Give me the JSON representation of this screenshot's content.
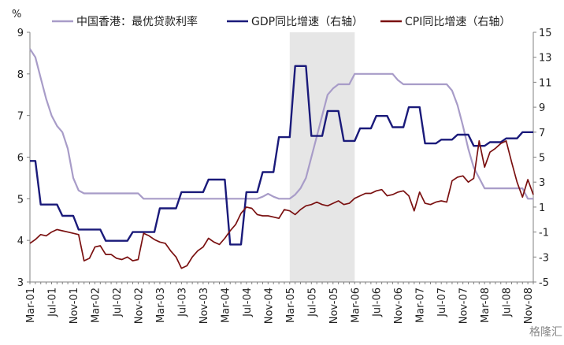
{
  "chart_data": {
    "type": "line",
    "left_axis_unit": "%",
    "y_left_lim": [
      3,
      9
    ],
    "y_right_lim": [
      -5,
      15
    ],
    "left_ticks": [
      3,
      4,
      5,
      6,
      7,
      8,
      9
    ],
    "right_ticks": [
      -5,
      -3,
      -1,
      1,
      3,
      5,
      7,
      9,
      11,
      13,
      15
    ],
    "x_range": [
      "2001-03",
      "2008-12"
    ],
    "x_tick_labels": [
      "Mar-01",
      "Jul-01",
      "Nov-01",
      "Mar-02",
      "Jul-02",
      "Nov-02",
      "Mar-03",
      "Jul-03",
      "Nov-03",
      "Mar-04",
      "Jul-04",
      "Nov-04",
      "Mar-05",
      "Jul-05",
      "Nov-05",
      "Mar-06",
      "Jul-06",
      "Nov-06",
      "Mar-07",
      "Jul-07",
      "Nov-07",
      "Mar-08",
      "Jul-08",
      "Nov-08"
    ],
    "shaded_period": [
      "2005-03",
      "2006-03"
    ],
    "grid": false,
    "legend_position": "top",
    "series": [
      {
        "name": "中国香港：最优贷款利率",
        "axis": "left",
        "color": "#a89cc8",
        "points": [
          [
            "2001-03",
            8.6
          ],
          [
            "2001-04",
            8.4
          ],
          [
            "2001-05",
            7.9
          ],
          [
            "2001-06",
            7.4
          ],
          [
            "2001-07",
            7.0
          ],
          [
            "2001-08",
            6.75
          ],
          [
            "2001-09",
            6.6
          ],
          [
            "2001-10",
            6.2
          ],
          [
            "2001-11",
            5.5
          ],
          [
            "2001-12",
            5.2
          ],
          [
            "2002-01",
            5.13
          ],
          [
            "2002-02",
            5.13
          ],
          [
            "2002-03",
            5.13
          ],
          [
            "2002-04",
            5.13
          ],
          [
            "2002-05",
            5.13
          ],
          [
            "2002-06",
            5.13
          ],
          [
            "2002-07",
            5.13
          ],
          [
            "2002-08",
            5.13
          ],
          [
            "2002-09",
            5.13
          ],
          [
            "2002-10",
            5.13
          ],
          [
            "2002-11",
            5.13
          ],
          [
            "2002-12",
            5.0
          ],
          [
            "2003-01",
            5.0
          ],
          [
            "2003-02",
            5.0
          ],
          [
            "2003-03",
            5.0
          ],
          [
            "2003-04",
            5.0
          ],
          [
            "2003-05",
            5.0
          ],
          [
            "2003-06",
            5.0
          ],
          [
            "2003-07",
            5.0
          ],
          [
            "2003-08",
            5.0
          ],
          [
            "2003-09",
            5.0
          ],
          [
            "2003-10",
            5.0
          ],
          [
            "2003-11",
            5.0
          ],
          [
            "2003-12",
            5.0
          ],
          [
            "2004-01",
            5.0
          ],
          [
            "2004-02",
            5.0
          ],
          [
            "2004-03",
            5.0
          ],
          [
            "2004-04",
            5.0
          ],
          [
            "2004-05",
            5.0
          ],
          [
            "2004-06",
            5.0
          ],
          [
            "2004-07",
            5.0
          ],
          [
            "2004-08",
            5.0
          ],
          [
            "2004-09",
            5.0
          ],
          [
            "2004-10",
            5.05
          ],
          [
            "2004-11",
            5.12
          ],
          [
            "2004-12",
            5.05
          ],
          [
            "2005-01",
            5.0
          ],
          [
            "2005-02",
            5.0
          ],
          [
            "2005-03",
            5.0
          ],
          [
            "2005-04",
            5.1
          ],
          [
            "2005-05",
            5.25
          ],
          [
            "2005-06",
            5.5
          ],
          [
            "2005-07",
            6.0
          ],
          [
            "2005-08",
            6.5
          ],
          [
            "2005-09",
            7.0
          ],
          [
            "2005-10",
            7.5
          ],
          [
            "2005-11",
            7.65
          ],
          [
            "2005-12",
            7.75
          ],
          [
            "2006-01",
            7.75
          ],
          [
            "2006-02",
            7.75
          ],
          [
            "2006-03",
            8.0
          ],
          [
            "2006-04",
            8.0
          ],
          [
            "2006-05",
            8.0
          ],
          [
            "2006-06",
            8.0
          ],
          [
            "2006-07",
            8.0
          ],
          [
            "2006-08",
            8.0
          ],
          [
            "2006-09",
            8.0
          ],
          [
            "2006-10",
            8.0
          ],
          [
            "2006-11",
            7.85
          ],
          [
            "2006-12",
            7.75
          ],
          [
            "2007-01",
            7.75
          ],
          [
            "2007-02",
            7.75
          ],
          [
            "2007-03",
            7.75
          ],
          [
            "2007-04",
            7.75
          ],
          [
            "2007-05",
            7.75
          ],
          [
            "2007-06",
            7.75
          ],
          [
            "2007-07",
            7.75
          ],
          [
            "2007-08",
            7.75
          ],
          [
            "2007-09",
            7.6
          ],
          [
            "2007-10",
            7.25
          ],
          [
            "2007-11",
            6.75
          ],
          [
            "2007-12",
            6.2
          ],
          [
            "2008-01",
            5.75
          ],
          [
            "2008-02",
            5.5
          ],
          [
            "2008-03",
            5.25
          ],
          [
            "2008-04",
            5.25
          ],
          [
            "2008-05",
            5.25
          ],
          [
            "2008-06",
            5.25
          ],
          [
            "2008-07",
            5.25
          ],
          [
            "2008-08",
            5.25
          ],
          [
            "2008-09",
            5.25
          ],
          [
            "2008-10",
            5.25
          ],
          [
            "2008-11",
            5.0
          ],
          [
            "2008-12",
            5.0
          ]
        ]
      },
      {
        "name": "GDP同比增速（右轴）",
        "axis": "right",
        "color": "#1a1a7a",
        "points": [
          [
            "2001-03",
            4.7
          ],
          [
            "2001-04",
            4.7
          ],
          [
            "2001-05",
            1.2
          ],
          [
            "2001-06",
            1.2
          ],
          [
            "2001-07",
            1.2
          ],
          [
            "2001-08",
            1.2
          ],
          [
            "2001-09",
            0.3
          ],
          [
            "2001-10",
            0.3
          ],
          [
            "2001-11",
            0.3
          ],
          [
            "2001-12",
            -0.8
          ],
          [
            "2002-01",
            -0.8
          ],
          [
            "2002-02",
            -0.8
          ],
          [
            "2002-03",
            -0.8
          ],
          [
            "2002-04",
            -0.8
          ],
          [
            "2002-05",
            -1.7
          ],
          [
            "2002-06",
            -1.7
          ],
          [
            "2002-07",
            -1.7
          ],
          [
            "2002-08",
            -1.7
          ],
          [
            "2002-09",
            -1.7
          ],
          [
            "2002-10",
            -1.0
          ],
          [
            "2002-11",
            -1.0
          ],
          [
            "2002-12",
            -1.0
          ],
          [
            "2003-01",
            -1.0
          ],
          [
            "2003-02",
            -1.0
          ],
          [
            "2003-03",
            0.9
          ],
          [
            "2003-04",
            0.9
          ],
          [
            "2003-05",
            0.9
          ],
          [
            "2003-06",
            0.9
          ],
          [
            "2003-07",
            2.2
          ],
          [
            "2003-08",
            2.2
          ],
          [
            "2003-09",
            2.2
          ],
          [
            "2003-10",
            2.2
          ],
          [
            "2003-11",
            2.2
          ],
          [
            "2003-12",
            3.2
          ],
          [
            "2004-01",
            3.2
          ],
          [
            "2004-02",
            3.2
          ],
          [
            "2004-03",
            3.2
          ],
          [
            "2004-04",
            -2.0
          ],
          [
            "2004-05",
            -2.0
          ],
          [
            "2004-06",
            -2.0
          ],
          [
            "2004-07",
            2.2
          ],
          [
            "2004-08",
            2.2
          ],
          [
            "2004-09",
            2.2
          ],
          [
            "2004-10",
            3.8
          ],
          [
            "2004-11",
            3.8
          ],
          [
            "2004-12",
            3.8
          ],
          [
            "2005-01",
            6.6
          ],
          [
            "2005-02",
            6.6
          ],
          [
            "2005-03",
            6.6
          ],
          [
            "2005-04",
            12.3
          ],
          [
            "2005-05",
            12.3
          ],
          [
            "2005-06",
            12.3
          ],
          [
            "2005-07",
            6.7
          ],
          [
            "2005-08",
            6.7
          ],
          [
            "2005-09",
            6.7
          ],
          [
            "2005-10",
            8.7
          ],
          [
            "2005-11",
            8.7
          ],
          [
            "2005-12",
            8.7
          ],
          [
            "2006-01",
            6.3
          ],
          [
            "2006-02",
            6.3
          ],
          [
            "2006-03",
            6.3
          ],
          [
            "2006-04",
            7.3
          ],
          [
            "2006-05",
            7.3
          ],
          [
            "2006-06",
            7.3
          ],
          [
            "2006-07",
            8.3
          ],
          [
            "2006-08",
            8.3
          ],
          [
            "2006-09",
            8.3
          ],
          [
            "2006-10",
            7.4
          ],
          [
            "2006-11",
            7.4
          ],
          [
            "2006-12",
            7.4
          ],
          [
            "2007-01",
            9.0
          ],
          [
            "2007-02",
            9.0
          ],
          [
            "2007-03",
            9.0
          ],
          [
            "2007-04",
            6.1
          ],
          [
            "2007-05",
            6.1
          ],
          [
            "2007-06",
            6.1
          ],
          [
            "2007-07",
            6.4
          ],
          [
            "2007-08",
            6.4
          ],
          [
            "2007-09",
            6.4
          ],
          [
            "2007-10",
            6.8
          ],
          [
            "2007-11",
            6.8
          ],
          [
            "2007-12",
            6.8
          ],
          [
            "2008-01",
            5.9
          ],
          [
            "2008-02",
            5.9
          ],
          [
            "2008-03",
            5.9
          ],
          [
            "2008-04",
            6.2
          ],
          [
            "2008-05",
            6.2
          ],
          [
            "2008-06",
            6.2
          ],
          [
            "2008-07",
            6.5
          ],
          [
            "2008-08",
            6.5
          ],
          [
            "2008-09",
            6.5
          ],
          [
            "2008-10",
            7.0
          ],
          [
            "2008-11",
            7.0
          ],
          [
            "2008-12",
            7.0
          ]
        ]
      },
      {
        "name": "CPI同比增速（右轴）",
        "axis": "right",
        "color": "#7a1010",
        "points": [
          [
            "2001-03",
            -1.9
          ],
          [
            "2001-04",
            -1.6
          ],
          [
            "2001-05",
            -1.2
          ],
          [
            "2001-06",
            -1.3
          ],
          [
            "2001-07",
            -1.0
          ],
          [
            "2001-08",
            -0.8
          ],
          [
            "2001-09",
            -0.9
          ],
          [
            "2001-10",
            -1.0
          ],
          [
            "2001-11",
            -1.1
          ],
          [
            "2001-12",
            -1.2
          ],
          [
            "2002-01",
            -3.3
          ],
          [
            "2002-02",
            -3.1
          ],
          [
            "2002-03",
            -2.2
          ],
          [
            "2002-04",
            -2.1
          ],
          [
            "2002-05",
            -2.8
          ],
          [
            "2002-06",
            -2.8
          ],
          [
            "2002-07",
            -3.1
          ],
          [
            "2002-08",
            -3.2
          ],
          [
            "2002-09",
            -3.0
          ],
          [
            "2002-10",
            -3.3
          ],
          [
            "2002-11",
            -3.2
          ],
          [
            "2002-12",
            -1.1
          ],
          [
            "2003-01",
            -1.3
          ],
          [
            "2003-02",
            -1.6
          ],
          [
            "2003-03",
            -1.8
          ],
          [
            "2003-04",
            -1.9
          ],
          [
            "2003-05",
            -2.5
          ],
          [
            "2003-06",
            -3.0
          ],
          [
            "2003-07",
            -3.9
          ],
          [
            "2003-08",
            -3.7
          ],
          [
            "2003-09",
            -3.0
          ],
          [
            "2003-10",
            -2.5
          ],
          [
            "2003-11",
            -2.2
          ],
          [
            "2003-12",
            -1.5
          ],
          [
            "2004-01",
            -1.8
          ],
          [
            "2004-02",
            -2.0
          ],
          [
            "2004-03",
            -1.5
          ],
          [
            "2004-04",
            -0.9
          ],
          [
            "2004-05",
            -0.4
          ],
          [
            "2004-06",
            0.5
          ],
          [
            "2004-07",
            1.0
          ],
          [
            "2004-08",
            0.9
          ],
          [
            "2004-09",
            0.4
          ],
          [
            "2004-10",
            0.3
          ],
          [
            "2004-11",
            0.3
          ],
          [
            "2004-12",
            0.2
          ],
          [
            "2005-01",
            0.1
          ],
          [
            "2005-02",
            0.8
          ],
          [
            "2005-03",
            0.7
          ],
          [
            "2005-04",
            0.4
          ],
          [
            "2005-05",
            0.8
          ],
          [
            "2005-06",
            1.1
          ],
          [
            "2005-07",
            1.2
          ],
          [
            "2005-08",
            1.4
          ],
          [
            "2005-09",
            1.2
          ],
          [
            "2005-10",
            1.1
          ],
          [
            "2005-11",
            1.3
          ],
          [
            "2005-12",
            1.5
          ],
          [
            "2006-01",
            1.2
          ],
          [
            "2006-02",
            1.3
          ],
          [
            "2006-03",
            1.7
          ],
          [
            "2006-04",
            1.9
          ],
          [
            "2006-05",
            2.1
          ],
          [
            "2006-06",
            2.1
          ],
          [
            "2006-07",
            2.3
          ],
          [
            "2006-08",
            2.4
          ],
          [
            "2006-09",
            1.9
          ],
          [
            "2006-10",
            2.0
          ],
          [
            "2006-11",
            2.2
          ],
          [
            "2006-12",
            2.3
          ],
          [
            "2007-01",
            1.9
          ],
          [
            "2007-02",
            0.7
          ],
          [
            "2007-03",
            2.2
          ],
          [
            "2007-04",
            1.3
          ],
          [
            "2007-05",
            1.2
          ],
          [
            "2007-06",
            1.4
          ],
          [
            "2007-07",
            1.5
          ],
          [
            "2007-08",
            1.4
          ],
          [
            "2007-09",
            3.1
          ],
          [
            "2007-10",
            3.4
          ],
          [
            "2007-11",
            3.5
          ],
          [
            "2007-12",
            3.0
          ],
          [
            "2008-01",
            3.3
          ],
          [
            "2008-02",
            6.3
          ],
          [
            "2008-03",
            4.2
          ],
          [
            "2008-04",
            5.4
          ],
          [
            "2008-05",
            5.7
          ],
          [
            "2008-06",
            6.1
          ],
          [
            "2008-07",
            6.3
          ],
          [
            "2008-08",
            4.6
          ],
          [
            "2008-09",
            3.0
          ],
          [
            "2008-10",
            1.8
          ],
          [
            "2008-11",
            3.2
          ],
          [
            "2008-12",
            2.0
          ]
        ]
      }
    ]
  },
  "watermark": {
    "text": "格隆汇"
  }
}
